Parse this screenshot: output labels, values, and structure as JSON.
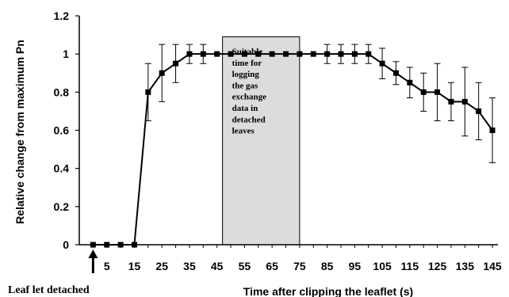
{
  "chart_data": {
    "type": "line",
    "xlabel": "Time after clipping the leaflet (s)",
    "ylabel": "Relative change from maximum Pn",
    "ylim": [
      0,
      1.2
    ],
    "xlim": [
      -5,
      147
    ],
    "y_ticks": [
      "0",
      "0.2",
      "0.4",
      "0.6",
      "0.8",
      "1",
      "1.2"
    ],
    "x_ticks": [
      "5",
      "15",
      "25",
      "35",
      "45",
      "55",
      "65",
      "75",
      "85",
      "95",
      "105",
      "115",
      "125",
      "135",
      "145"
    ],
    "grid": false,
    "legend": "none",
    "series": [
      {
        "color": "#000000",
        "marker": "square",
        "x": [
          0,
          5,
          10,
          15,
          20,
          25,
          30,
          35,
          40,
          45,
          50,
          55,
          60,
          65,
          70,
          75,
          80,
          85,
          90,
          95,
          100,
          105,
          110,
          115,
          120,
          125,
          130,
          135,
          140,
          145
        ],
        "y": [
          0,
          0,
          0,
          0,
          0.8,
          0.9,
          0.95,
          1,
          1,
          1,
          1,
          1,
          1,
          1,
          1,
          1,
          1,
          1,
          1,
          1,
          1,
          0.95,
          0.9,
          0.85,
          0.8,
          0.8,
          0.75,
          0.75,
          0.7,
          0.6
        ],
        "error": [
          0,
          0,
          0,
          0,
          0.15,
          0.15,
          0.1,
          0.05,
          0.05,
          0,
          0,
          0,
          0,
          0,
          0,
          0,
          0,
          0.05,
          0.05,
          0.05,
          0.05,
          0.08,
          0.06,
          0.08,
          0.1,
          0.15,
          0.1,
          0.18,
          0.15,
          0.17
        ]
      }
    ],
    "annotations": {
      "shaded_region": {
        "x_start": 47,
        "x_end": 75,
        "y_top": 1.09,
        "text": [
          "Suitable",
          "time for",
          "logging",
          "the gas",
          "exchange",
          "data in",
          "detached",
          "leaves"
        ],
        "fill": "#dcdcdc"
      },
      "arrow_label": "Leaf let detached",
      "arrow_x": 0
    }
  }
}
